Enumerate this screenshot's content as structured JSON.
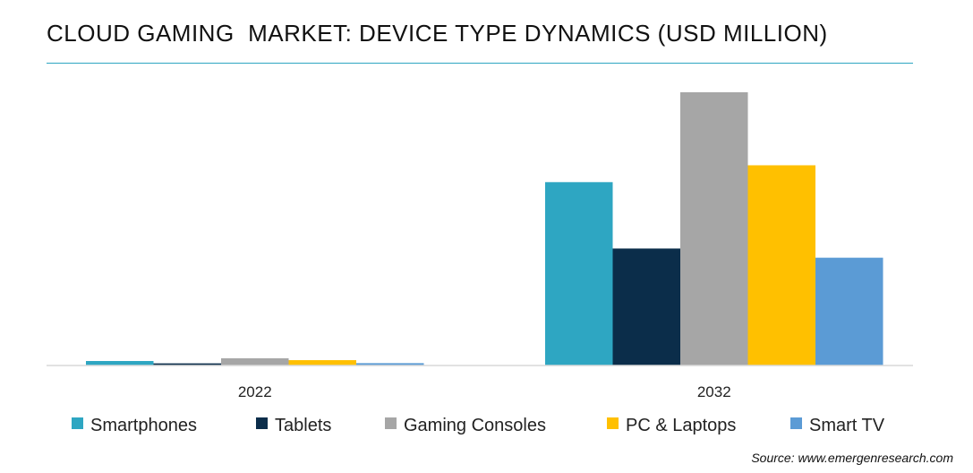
{
  "chart_data": {
    "type": "bar",
    "title": "CLOUD GAMING  MARKET: DEVICE TYPE DYNAMICS (USD MILLION)",
    "categories": [
      "2022",
      "2032"
    ],
    "series": [
      {
        "name": "Smartphones",
        "color": "#2ea6c2",
        "values": [
          210,
          8590
        ]
      },
      {
        "name": "Tablets",
        "color": "#0b2d4a",
        "values": [
          100,
          5480
        ]
      },
      {
        "name": "Gaming Consoles",
        "color": "#a6a6a6",
        "values": [
          340,
          12800
        ]
      },
      {
        "name": "PC & Laptops",
        "color": "#ffc000",
        "values": [
          250,
          9380
        ]
      },
      {
        "name": "Smart TV",
        "color": "#5b9bd5",
        "values": [
          110,
          5050
        ]
      }
    ],
    "xlabel": "",
    "ylabel": "",
    "ylim": [
      0,
      12800
    ],
    "grid": false,
    "legend": "bottom"
  },
  "source": "Source: www.emergenresearch.com"
}
